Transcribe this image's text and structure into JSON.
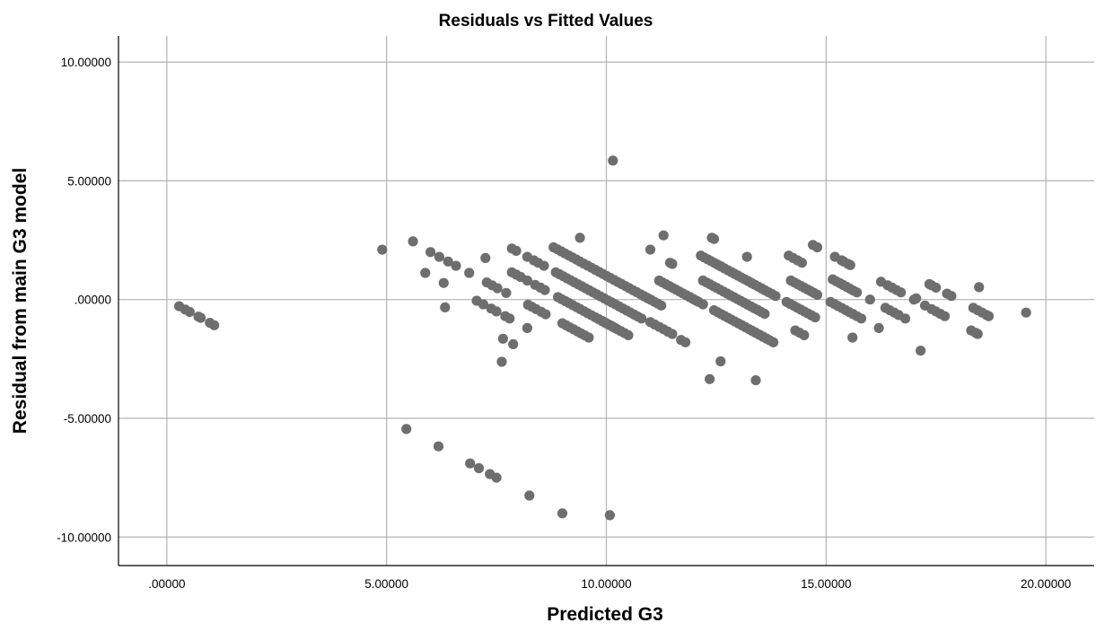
{
  "chart_data": {
    "type": "scatter",
    "title": "Residuals vs Fitted Values",
    "xlabel": "Predicted G3",
    "ylabel": "Residual from main G3 model",
    "xlim": [
      -1.1,
      21.1
    ],
    "ylim": [
      -11.2,
      11.1
    ],
    "xticks": [
      0,
      5,
      10,
      15,
      20
    ],
    "xtick_labels": [
      ".00000",
      "5.00000",
      "10.00000",
      "15.00000",
      "20.00000"
    ],
    "yticks": [
      10,
      5,
      0,
      -5,
      -10
    ],
    "ytick_labels": [
      "10.00000",
      "5.00000",
      ".00000",
      "-5.00000",
      "-10.00000"
    ],
    "grid": true,
    "point_color": "#6e6e6e",
    "points": [
      [
        0.28,
        -0.28
      ],
      [
        0.42,
        -0.42
      ],
      [
        0.52,
        -0.52
      ],
      [
        0.72,
        -0.72
      ],
      [
        0.77,
        -0.77
      ],
      [
        0.98,
        -0.98
      ],
      [
        1.08,
        -1.08
      ],
      [
        4.9,
        2.1
      ],
      [
        5.6,
        2.45
      ],
      [
        5.88,
        1.12
      ],
      [
        6.0,
        2.0
      ],
      [
        6.2,
        1.8
      ],
      [
        6.3,
        0.7
      ],
      [
        6.33,
        -0.33
      ],
      [
        6.4,
        1.6
      ],
      [
        6.58,
        1.42
      ],
      [
        6.88,
        1.12
      ],
      [
        7.05,
        -0.05
      ],
      [
        7.2,
        -0.2
      ],
      [
        7.25,
        1.75
      ],
      [
        7.28,
        0.72
      ],
      [
        7.4,
        0.6
      ],
      [
        7.38,
        -0.38
      ],
      [
        7.5,
        -0.5
      ],
      [
        7.52,
        0.48
      ],
      [
        7.65,
        -1.65
      ],
      [
        7.62,
        -2.62
      ],
      [
        7.7,
        -0.7
      ],
      [
        7.72,
        0.28
      ],
      [
        7.8,
        -0.8
      ],
      [
        7.85,
        2.15
      ],
      [
        7.85,
        1.15
      ],
      [
        7.88,
        -1.88
      ],
      [
        7.95,
        2.05
      ],
      [
        7.95,
        1.05
      ],
      [
        8.05,
        0.95
      ],
      [
        8.2,
        -1.2
      ],
      [
        8.2,
        1.8
      ],
      [
        8.2,
        0.8
      ],
      [
        8.22,
        -0.22
      ],
      [
        8.3,
        -0.3
      ],
      [
        8.35,
        1.65
      ],
      [
        8.38,
        0.62
      ],
      [
        8.4,
        -0.4
      ],
      [
        8.45,
        1.55
      ],
      [
        8.5,
        0.5
      ],
      [
        8.52,
        -0.52
      ],
      [
        8.58,
        1.42
      ],
      [
        8.6,
        0.4
      ],
      [
        8.62,
        -0.62
      ],
      [
        5.45,
        -5.45
      ],
      [
        6.18,
        -6.18
      ],
      [
        6.9,
        -6.9
      ],
      [
        7.1,
        -7.1
      ],
      [
        7.35,
        -7.35
      ],
      [
        7.5,
        -7.5
      ],
      [
        8.25,
        -8.25
      ],
      [
        9.0,
        -9.0
      ],
      [
        10.08,
        -9.08
      ],
      [
        10.15,
        5.85
      ],
      [
        9.4,
        2.6
      ],
      [
        11.3,
        2.7
      ],
      [
        11.0,
        2.1
      ],
      [
        12.4,
        2.6
      ],
      [
        12.45,
        2.55
      ],
      [
        12.6,
        1.4
      ],
      [
        13.2,
        1.8
      ],
      [
        14.7,
        2.3
      ],
      [
        14.8,
        2.2
      ],
      [
        11.45,
        1.55
      ],
      [
        11.5,
        1.5
      ],
      [
        12.35,
        -3.35
      ],
      [
        12.6,
        -2.6
      ],
      [
        13.4,
        -3.4
      ],
      [
        15.2,
        1.8
      ],
      [
        15.35,
        1.65
      ],
      [
        15.4,
        1.6
      ],
      [
        15.5,
        1.5
      ],
      [
        15.55,
        1.45
      ],
      [
        15.6,
        -1.6
      ],
      [
        15.8,
        -0.8
      ],
      [
        16.0,
        -0.0
      ],
      [
        16.2,
        -1.2
      ],
      [
        16.25,
        0.75
      ],
      [
        16.4,
        0.6
      ],
      [
        16.5,
        0.5
      ],
      [
        16.6,
        0.4
      ],
      [
        16.7,
        0.3
      ],
      [
        16.55,
        -0.55
      ],
      [
        16.35,
        -0.35
      ],
      [
        16.45,
        -0.45
      ],
      [
        16.65,
        -0.65
      ],
      [
        16.8,
        -0.8
      ],
      [
        17.0,
        0.0
      ],
      [
        17.05,
        0.05
      ],
      [
        17.15,
        -2.15
      ],
      [
        17.25,
        -0.25
      ],
      [
        17.35,
        0.65
      ],
      [
        17.4,
        0.6
      ],
      [
        17.5,
        0.5
      ],
      [
        17.4,
        -0.4
      ],
      [
        17.5,
        -0.5
      ],
      [
        17.6,
        -0.6
      ],
      [
        17.7,
        -0.7
      ],
      [
        17.75,
        0.25
      ],
      [
        17.85,
        0.15
      ],
      [
        18.3,
        -1.3
      ],
      [
        18.4,
        -1.4
      ],
      [
        18.45,
        -1.45
      ],
      [
        18.35,
        -0.35
      ],
      [
        18.45,
        -0.45
      ],
      [
        18.48,
        0.52
      ],
      [
        18.55,
        -0.55
      ],
      [
        18.65,
        -0.65
      ],
      [
        18.7,
        -0.7
      ],
      [
        19.55,
        -0.55
      ]
    ],
    "bands": [
      {
        "x0": 8.8,
        "x1": 10.95,
        "r0": 2.2,
        "n": 26
      },
      {
        "x0": 8.85,
        "x1": 10.8,
        "r0": 1.15,
        "n": 24
      },
      {
        "x0": 8.9,
        "x1": 10.5,
        "r0": 0.1,
        "n": 20
      },
      {
        "x0": 9.0,
        "x1": 9.6,
        "r0": -1.0,
        "n": 8
      },
      {
        "x0": 9.9,
        "x1": 10.2,
        "r0": -0.9,
        "n": 5
      },
      {
        "x0": 10.85,
        "x1": 11.25,
        "r0": 0.15,
        "n": 6
      },
      {
        "x0": 11.0,
        "x1": 11.5,
        "r0": -0.95,
        "n": 6
      },
      {
        "x0": 11.2,
        "x1": 12.05,
        "r0": 0.8,
        "n": 12
      },
      {
        "x0": 11.7,
        "x1": 11.8,
        "r0": -1.7,
        "n": 2
      },
      {
        "x0": 11.9,
        "x1": 12.2,
        "r0": 0.1,
        "n": 4
      },
      {
        "x0": 12.15,
        "x1": 13.3,
        "r0": 1.85,
        "n": 16
      },
      {
        "x0": 12.2,
        "x1": 13.6,
        "r0": 0.8,
        "n": 19
      },
      {
        "x0": 12.45,
        "x1": 13.8,
        "r0": -0.45,
        "n": 18
      },
      {
        "x0": 13.3,
        "x1": 13.85,
        "r0": 0.7,
        "n": 8
      },
      {
        "x0": 13.3,
        "x1": 13.65,
        "r0": -1.3,
        "n": 5
      },
      {
        "x0": 14.15,
        "x1": 14.45,
        "r0": 1.85,
        "n": 4
      },
      {
        "x0": 14.2,
        "x1": 14.8,
        "r0": 0.8,
        "n": 9
      },
      {
        "x0": 14.1,
        "x1": 14.75,
        "r0": -0.1,
        "n": 9
      },
      {
        "x0": 14.3,
        "x1": 14.5,
        "r0": -1.3,
        "n": 3
      },
      {
        "x0": 15.15,
        "x1": 15.7,
        "r0": 0.85,
        "n": 8
      },
      {
        "x0": 15.1,
        "x1": 15.7,
        "r0": -0.1,
        "n": 8
      }
    ]
  }
}
